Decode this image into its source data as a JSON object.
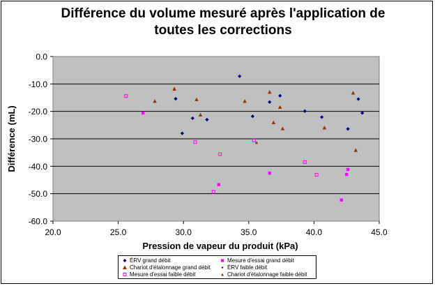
{
  "chart_data": {
    "type": "scatter",
    "title_lines": [
      "Différence du volume mesuré après l'application de",
      "toutes les corrections"
    ],
    "xlabel": "Pression de vapeur du produit (kPa)",
    "ylabel": "Différence (mL)",
    "xlim": [
      20.0,
      45.0
    ],
    "ylim": [
      -60.0,
      0.0
    ],
    "x_ticks": [
      "20.0",
      "25.0",
      "30.0",
      "35.0",
      "40.0",
      "45.0"
    ],
    "y_ticks": [
      "0.0",
      "-10.0",
      "-20.0",
      "-30.0",
      "-40.0",
      "-50.0",
      "-60.0"
    ],
    "grid": "horizontal",
    "plot_background": "#c0c0c0",
    "legend_position": "bottom",
    "series": [
      {
        "name": "ÉRV grand débit",
        "marker": "diamond",
        "color": "#000080",
        "x": [
          29.9,
          30.7,
          31.8,
          34.3,
          35.3,
          37.4,
          40.6,
          42.6,
          43.4,
          43.7
        ],
        "y": [
          -28.0,
          -22.5,
          -23.0,
          -7.2,
          -21.8,
          -14.3,
          -22.1,
          -26.4,
          -15.5,
          -20.6
        ]
      },
      {
        "name": "Mesure d'essai grand débit",
        "marker": "square",
        "color": "#ff00ff",
        "x": [
          26.9,
          32.7,
          36.6,
          42.1,
          42.5,
          42.6
        ],
        "y": [
          -20.6,
          -46.7,
          -42.5,
          -52.3,
          -43.0,
          -41.2
        ]
      },
      {
        "name": "Chariot d'étalonnage grand débit",
        "marker": "triangle",
        "color": "#993300",
        "x": [
          27.8,
          29.3,
          31.0,
          31.3,
          34.7,
          36.6,
          36.9,
          37.4,
          37.6,
          40.8,
          43.0,
          43.2
        ],
        "y": [
          -16.3,
          -11.8,
          -15.7,
          -21.3,
          -16.3,
          -13.0,
          -24.1,
          -18.5,
          -26.3,
          -26.0,
          -13.3,
          -34.2
        ]
      },
      {
        "name": "ÉRV faible débit",
        "marker": "diamond",
        "color": "#000080",
        "x": [
          29.4,
          36.6,
          39.3
        ],
        "y": [
          -15.4,
          -16.6,
          -19.9
        ]
      },
      {
        "name": "Mesure d'essai faible débit",
        "marker": "square-open",
        "color": "#ff00ff",
        "x": [
          25.6,
          30.9,
          32.3,
          32.8,
          35.4,
          39.3,
          40.2
        ],
        "y": [
          -14.4,
          -31.2,
          -49.3,
          -35.6,
          -30.6,
          -38.5,
          -43.1
        ]
      },
      {
        "name": "Chariot d'étalonnage faible débit",
        "marker": "triangle-small",
        "color": "#993300",
        "x": [
          29.3,
          35.6
        ],
        "y": [
          -12.0,
          -31.4
        ]
      }
    ]
  },
  "legend": {
    "items": [
      {
        "label": "ÉRV grand débit"
      },
      {
        "label": "Mesure d'essai grand débit"
      },
      {
        "label": "Chariot d'étalonnage grand débit"
      },
      {
        "label": "ÉRV faible débit"
      },
      {
        "label": "Mesure d'essai faible débit"
      },
      {
        "label": "Chariot d'étalonnage faible débit"
      }
    ]
  }
}
